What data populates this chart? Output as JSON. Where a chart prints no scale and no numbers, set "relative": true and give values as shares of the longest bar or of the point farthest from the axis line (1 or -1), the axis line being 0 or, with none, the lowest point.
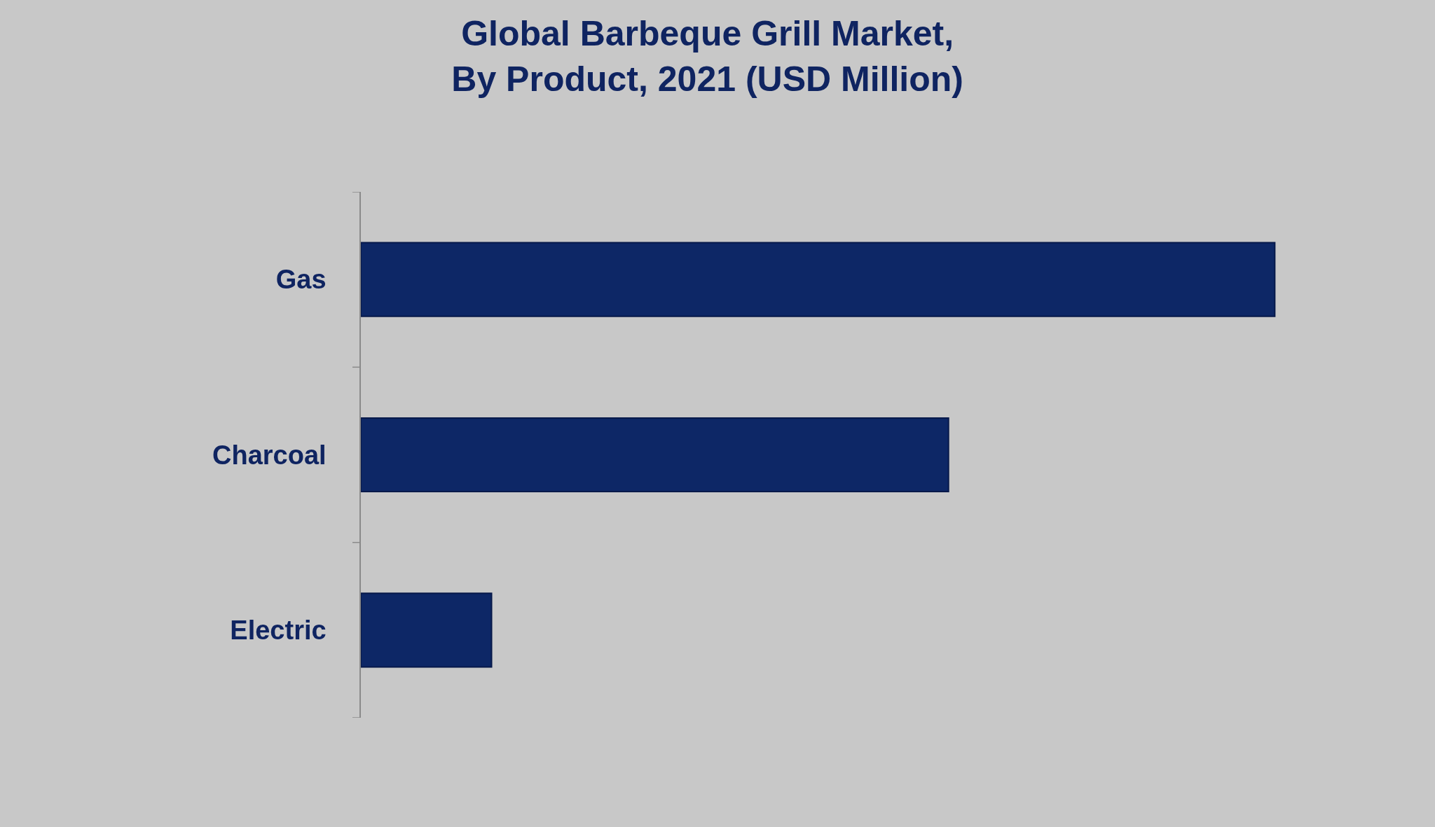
{
  "chart_data": {
    "type": "bar",
    "orientation": "horizontal",
    "relative": true,
    "title": "Global Barbeque Grill Market,\nBy Product, 2021 (USD Million)",
    "categories": [
      "Gas",
      "Charcoal",
      "Electric"
    ],
    "values": [
      1,
      0.643,
      0.143
    ],
    "color": "#0d2766"
  }
}
